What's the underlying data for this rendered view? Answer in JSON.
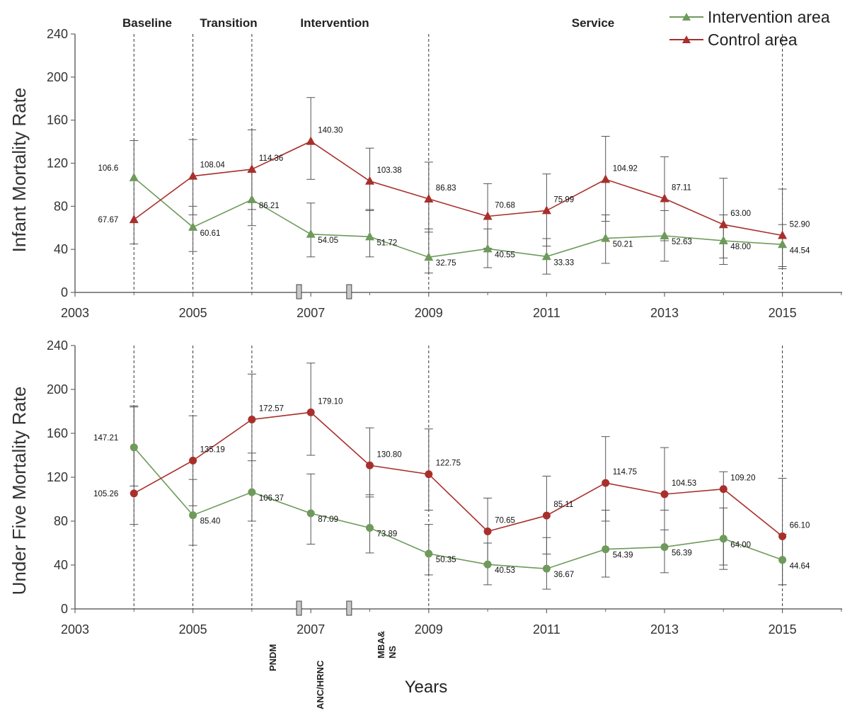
{
  "colors": {
    "intervention": "#6e9a5b",
    "control": "#a8302c",
    "axis": "#666666",
    "dashed": "#333333",
    "errorbar": "#555555"
  },
  "legend": {
    "items": [
      {
        "label": "Intervention area",
        "color": "#6e9a5b"
      },
      {
        "label": "Control area",
        "color": "#a8302c"
      }
    ]
  },
  "phases": [
    "Baseline",
    "Transition",
    "Intervention",
    "Service"
  ],
  "x_axis_title": "Years",
  "x_ticks": [
    "2003",
    "2005",
    "2007",
    "2009",
    "2011",
    "2013",
    "2015"
  ],
  "y_ticks": [
    "0",
    "40",
    "80",
    "120",
    "160",
    "200",
    "240"
  ],
  "events": [
    "PNDM",
    "ANC/HRNC",
    "MBA&\nNS"
  ],
  "chart_data": [
    {
      "type": "line",
      "ylabel": "Infant Mortality Rate",
      "xlabel": "",
      "xlim": [
        2003,
        2016
      ],
      "ylim": [
        0,
        240
      ],
      "x": [
        2004,
        2005,
        2006,
        2007,
        2008,
        2009,
        2010,
        2011,
        2012,
        2013,
        2014,
        2015
      ],
      "phase_lines": [
        2004,
        2005,
        2006,
        2009,
        2015
      ],
      "event_markers": [
        2006.8,
        2007.65
      ],
      "series": [
        {
          "name": "Intervention area",
          "marker": "triangle",
          "values": [
            106.6,
            60.61,
            86.21,
            54.05,
            51.72,
            32.75,
            40.55,
            33.33,
            50.21,
            52.63,
            48.0,
            44.54
          ],
          "labels": [
            "106.6",
            "60.61",
            "86.21",
            "54.05",
            "51.72",
            "32.75",
            "40.55",
            "33.33",
            "50.21",
            "52.63",
            "48.00",
            "44.54"
          ],
          "err_low": [
            null,
            38,
            62,
            33,
            33,
            18,
            23,
            17,
            27,
            29,
            26,
            24
          ],
          "err_high": [
            null,
            80,
            112,
            83,
            77,
            59,
            59,
            50,
            72,
            76,
            72,
            63
          ]
        },
        {
          "name": "Control area",
          "marker": "triangle",
          "values": [
            67.67,
            108.04,
            114.36,
            140.3,
            103.38,
            86.83,
            70.68,
            75.99,
            104.92,
            87.11,
            63.0,
            52.9
          ],
          "labels": [
            "67.67",
            "108.04",
            "114.36",
            "140.30",
            "103.38",
            "86.83",
            "70.68",
            "75.99",
            "104.92",
            "87.11",
            "63.00",
            "52.90"
          ],
          "err_low": [
            45,
            72,
            77,
            105,
            76,
            56,
            41,
            43,
            66,
            48,
            32,
            22
          ],
          "err_high": [
            141,
            142,
            151,
            181,
            134,
            121,
            101,
            110,
            145,
            126,
            106,
            96
          ]
        }
      ]
    },
    {
      "type": "line",
      "ylabel": "Under Five Mortality Rate",
      "xlabel": "Years",
      "xlim": [
        2003,
        2016
      ],
      "ylim": [
        0,
        240
      ],
      "x": [
        2004,
        2005,
        2006,
        2007,
        2008,
        2009,
        2010,
        2011,
        2012,
        2013,
        2014,
        2015
      ],
      "phase_lines": [
        2004,
        2005,
        2006,
        2009,
        2015
      ],
      "event_markers": [
        2006.8,
        2007.65
      ],
      "series": [
        {
          "name": "Intervention area",
          "marker": "circle",
          "values": [
            147.21,
            85.4,
            106.37,
            87.09,
            73.89,
            50.35,
            40.53,
            36.67,
            54.39,
            56.39,
            64.0,
            44.64
          ],
          "labels": [
            "147.21",
            "85.40",
            "106.37",
            "87.09",
            "73.89",
            "50.35",
            "40.53",
            "36.67",
            "54.39",
            "56.39",
            "64.00",
            "44.64"
          ],
          "err_low": [
            112,
            58,
            80,
            59,
            51,
            31,
            22,
            18,
            29,
            33,
            36,
            22
          ],
          "err_high": [
            185,
            118,
            142,
            123,
            104,
            77,
            60,
            65,
            90,
            90,
            92,
            68
          ]
        },
        {
          "name": "Control area",
          "marker": "circle",
          "values": [
            105.26,
            135.19,
            172.57,
            179.1,
            130.8,
            122.75,
            70.65,
            85.11,
            114.75,
            104.53,
            109.2,
            66.1
          ],
          "labels": [
            "105.26",
            "135.19",
            "172.57",
            "179.10",
            "130.80",
            "122.75",
            "70.65",
            "85.11",
            "114.75",
            "104.53",
            "109.20",
            "66.10"
          ],
          "err_low": [
            77,
            94,
            135,
            140,
            102,
            90,
            40,
            50,
            80,
            72,
            40,
            22
          ],
          "err_high": [
            184,
            176,
            214,
            224,
            165,
            164,
            101,
            121,
            157,
            147,
            125,
            119
          ]
        }
      ]
    }
  ]
}
